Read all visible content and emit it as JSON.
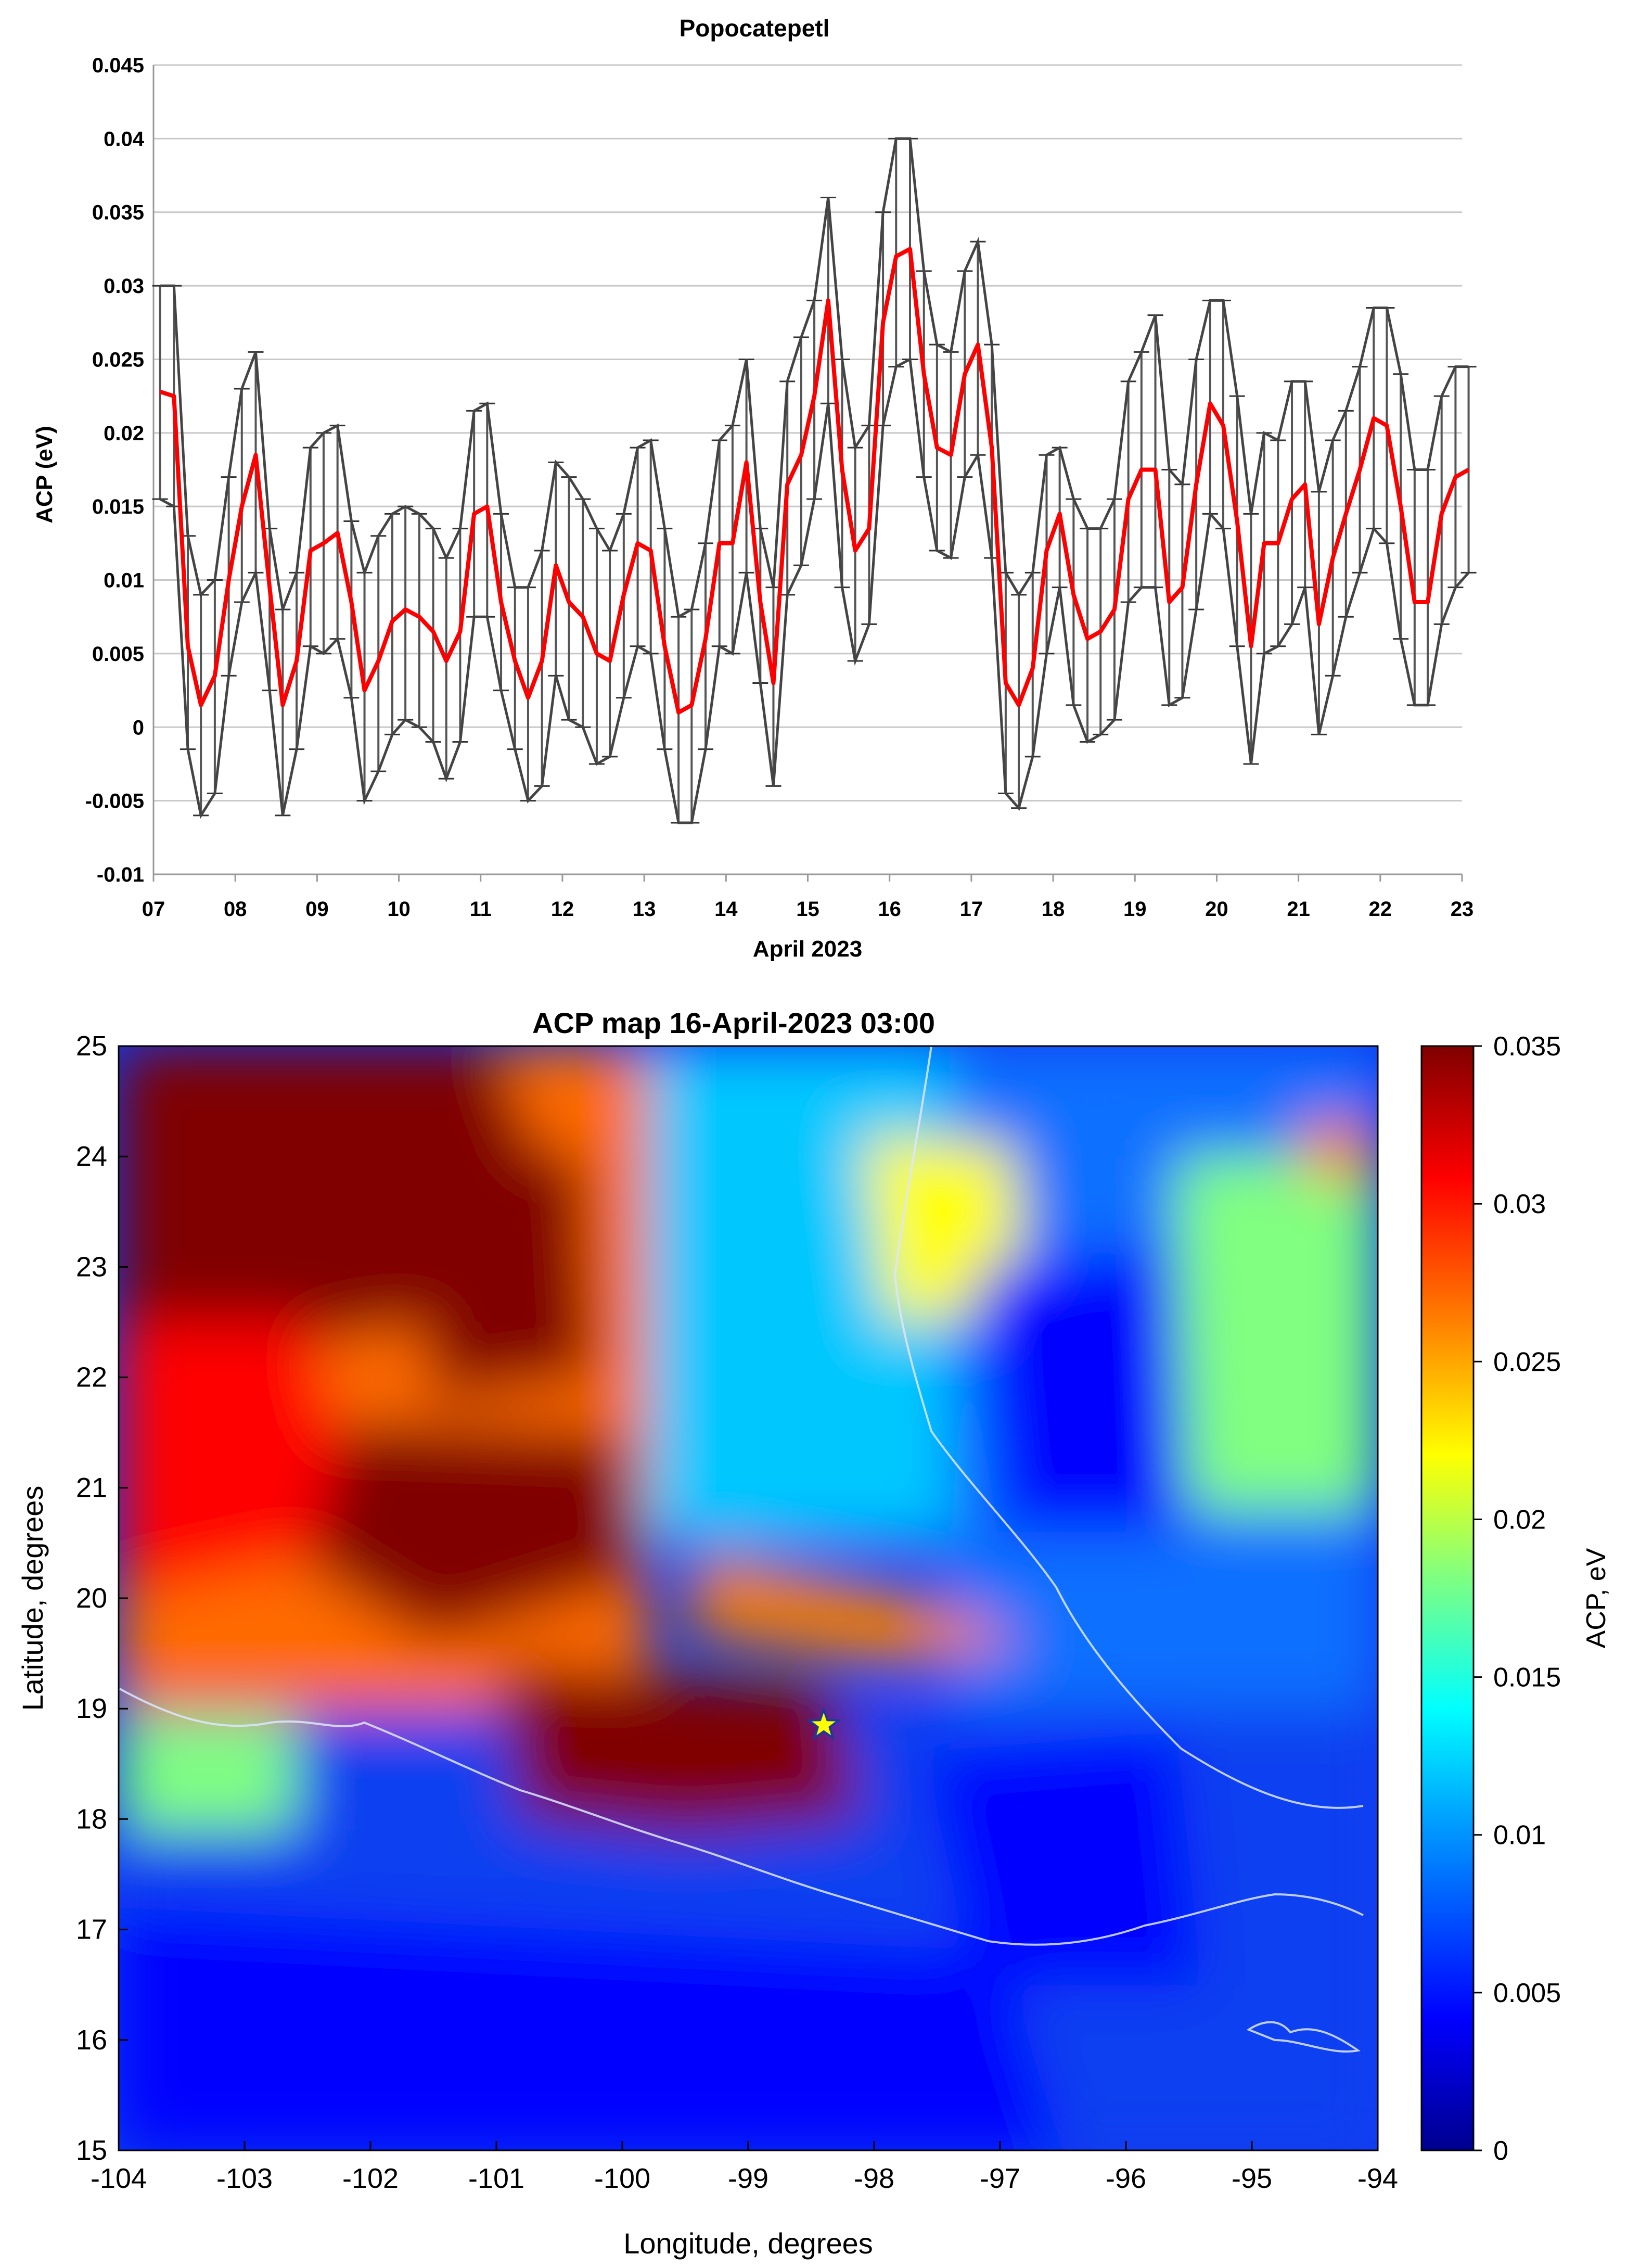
{
  "chart_data": [
    {
      "type": "line",
      "title": "Popocatepetl",
      "xlabel": "April 2023",
      "ylabel": "ACP (eV)",
      "ylim": [
        -0.01,
        0.045
      ],
      "xlim": [
        7,
        23
      ],
      "yticks": [
        "0.045",
        "0.04",
        "0.035",
        "0.03",
        "0.025",
        "0.02",
        "0.015",
        "0.01",
        "0.005",
        "0",
        "-0.005",
        "-0.01"
      ],
      "xticks": [
        "07",
        "08",
        "09",
        "10",
        "11",
        "12",
        "13",
        "14",
        "15",
        "16",
        "17",
        "18",
        "19",
        "20",
        "21",
        "22",
        "23"
      ],
      "grid": true,
      "series": [
        {
          "name": "ACP mean",
          "color": "#ff0000",
          "points": [
            [
              7.08,
              0.0228
            ],
            [
              7.25,
              0.0225
            ],
            [
              7.42,
              0.0055
            ],
            [
              7.58,
              0.0015
            ],
            [
              7.75,
              0.0035
            ],
            [
              7.92,
              0.01
            ],
            [
              8.08,
              0.015
            ],
            [
              8.25,
              0.0185
            ],
            [
              8.42,
              0.0095
            ],
            [
              8.58,
              0.0015
            ],
            [
              8.75,
              0.0045
            ],
            [
              8.92,
              0.012
            ],
            [
              9.08,
              0.0125
            ],
            [
              9.25,
              0.0132
            ],
            [
              9.42,
              0.0085
            ],
            [
              9.58,
              0.0025
            ],
            [
              9.75,
              0.0045
            ],
            [
              9.92,
              0.0072
            ],
            [
              10.08,
              0.008
            ],
            [
              10.25,
              0.0075
            ],
            [
              10.42,
              0.0065
            ],
            [
              10.58,
              0.0045
            ],
            [
              10.75,
              0.0065
            ],
            [
              10.92,
              0.0145
            ],
            [
              11.08,
              0.015
            ],
            [
              11.25,
              0.0085
            ],
            [
              11.42,
              0.0045
            ],
            [
              11.58,
              0.002
            ],
            [
              11.75,
              0.0045
            ],
            [
              11.92,
              0.011
            ],
            [
              12.08,
              0.0085
            ],
            [
              12.25,
              0.0075
            ],
            [
              12.42,
              0.005
            ],
            [
              12.58,
              0.0045
            ],
            [
              12.75,
              0.009
            ],
            [
              12.92,
              0.0125
            ],
            [
              13.08,
              0.012
            ],
            [
              13.25,
              0.0055
            ],
            [
              13.42,
              0.001
            ],
            [
              13.58,
              0.0015
            ],
            [
              13.75,
              0.006
            ],
            [
              13.92,
              0.0125
            ],
            [
              14.08,
              0.0125
            ],
            [
              14.25,
              0.018
            ],
            [
              14.42,
              0.0085
            ],
            [
              14.58,
              0.003
            ],
            [
              14.75,
              0.0165
            ],
            [
              14.92,
              0.0185
            ],
            [
              15.08,
              0.0225
            ],
            [
              15.25,
              0.029
            ],
            [
              15.42,
              0.0175
            ],
            [
              15.58,
              0.012
            ],
            [
              15.75,
              0.0135
            ],
            [
              15.92,
              0.0275
            ],
            [
              16.08,
              0.032
            ],
            [
              16.25,
              0.0325
            ],
            [
              16.42,
              0.024
            ],
            [
              16.58,
              0.019
            ],
            [
              16.75,
              0.0185
            ],
            [
              16.92,
              0.024
            ],
            [
              17.08,
              0.026
            ],
            [
              17.25,
              0.019
            ],
            [
              17.42,
              0.003
            ],
            [
              17.58,
              0.0015
            ],
            [
              17.75,
              0.004
            ],
            [
              17.92,
              0.012
            ],
            [
              18.08,
              0.0145
            ],
            [
              18.25,
              0.009
            ],
            [
              18.42,
              0.006
            ],
            [
              18.58,
              0.0065
            ],
            [
              18.75,
              0.008
            ],
            [
              18.92,
              0.0155
            ],
            [
              19.08,
              0.0175
            ],
            [
              19.25,
              0.0175
            ],
            [
              19.42,
              0.0085
            ],
            [
              19.58,
              0.0095
            ],
            [
              19.75,
              0.0165
            ],
            [
              19.92,
              0.022
            ],
            [
              20.08,
              0.0205
            ],
            [
              20.25,
              0.014
            ],
            [
              20.42,
              0.0055
            ],
            [
              20.58,
              0.0125
            ],
            [
              20.75,
              0.0125
            ],
            [
              20.92,
              0.0155
            ],
            [
              21.08,
              0.0165
            ],
            [
              21.25,
              0.007
            ],
            [
              21.42,
              0.0115
            ],
            [
              21.58,
              0.0145
            ],
            [
              21.75,
              0.0175
            ],
            [
              21.92,
              0.021
            ],
            [
              22.08,
              0.0205
            ],
            [
              22.25,
              0.015
            ],
            [
              22.42,
              0.0085
            ],
            [
              22.58,
              0.0085
            ],
            [
              22.75,
              0.0145
            ],
            [
              22.92,
              0.017
            ],
            [
              23.08,
              0.0175
            ]
          ]
        }
      ],
      "error_band": {
        "name": "error bars",
        "color": "#555555",
        "upper": [
          0.03,
          0.03,
          0.013,
          0.009,
          0.01,
          0.017,
          0.023,
          0.0255,
          0.0135,
          0.008,
          0.0105,
          0.019,
          0.02,
          0.0205,
          0.014,
          0.0105,
          0.013,
          0.0145,
          0.015,
          0.0145,
          0.0135,
          0.0115,
          0.0135,
          0.0215,
          0.022,
          0.0145,
          0.0095,
          0.0095,
          0.012,
          0.018,
          0.017,
          0.0155,
          0.0135,
          0.012,
          0.0145,
          0.019,
          0.0195,
          0.0135,
          0.0075,
          0.008,
          0.0125,
          0.0195,
          0.0205,
          0.025,
          0.0135,
          0.0095,
          0.0235,
          0.0265,
          0.029,
          0.036,
          0.025,
          0.019,
          0.0205,
          0.035,
          0.04,
          0.04,
          0.031,
          0.026,
          0.0255,
          0.031,
          0.033,
          0.026,
          0.0105,
          0.009,
          0.0105,
          0.0185,
          0.019,
          0.0155,
          0.0135,
          0.0135,
          0.0155,
          0.0235,
          0.0255,
          0.028,
          0.0175,
          0.0165,
          0.025,
          0.029,
          0.029,
          0.0225,
          0.0145,
          0.02,
          0.0195,
          0.0235,
          0.0235,
          0.016,
          0.0195,
          0.0215,
          0.0245,
          0.0285,
          0.0285,
          0.024,
          0.0175,
          0.0175,
          0.0225,
          0.0245,
          0.0245
        ]
      },
      "lower_band": [
        0.0155,
        0.015,
        -0.0015,
        -0.006,
        -0.0045,
        0.0035,
        0.0085,
        0.0105,
        0.0025,
        -0.006,
        -0.0015,
        0.0055,
        0.005,
        0.006,
        0.002,
        -0.005,
        -0.003,
        -0.0005,
        0.0005,
        0.0,
        -0.001,
        -0.0035,
        -0.001,
        0.0075,
        0.0075,
        0.0025,
        -0.0015,
        -0.005,
        -0.004,
        0.0035,
        0.0005,
        0.0,
        -0.0025,
        -0.002,
        0.002,
        0.0055,
        0.005,
        -0.0015,
        -0.0065,
        -0.0065,
        -0.0015,
        0.0055,
        0.005,
        0.0105,
        0.003,
        -0.004,
        0.009,
        0.011,
        0.0155,
        0.022,
        0.0095,
        0.0045,
        0.007,
        0.0205,
        0.0245,
        0.025,
        0.017,
        0.012,
        0.0115,
        0.017,
        0.0185,
        0.0115,
        -0.0045,
        -0.0055,
        -0.002,
        0.005,
        0.0095,
        0.0015,
        -0.001,
        -0.0005,
        0.0005,
        0.0085,
        0.0095,
        0.0095,
        0.0015,
        0.002,
        0.008,
        0.0145,
        0.0135,
        0.0055,
        -0.0025,
        0.005,
        0.0055,
        0.007,
        0.0095,
        -0.0005,
        0.0035,
        0.0075,
        0.0105,
        0.0135,
        0.0125,
        0.006,
        0.0015,
        0.0015,
        0.007,
        0.0095,
        0.0105
      ]
    },
    {
      "type": "heatmap",
      "title": "ACP map 16-April-2023 03:00",
      "xlabel": "Longitude, degrees",
      "ylabel": "Latitude, degrees",
      "xlim": [
        -104,
        -94
      ],
      "ylim": [
        15,
        25
      ],
      "xticks": [
        "-104",
        "-103",
        "-102",
        "-101",
        "-100",
        "-99",
        "-98",
        "-97",
        "-96",
        "-95",
        "-94"
      ],
      "yticks": [
        "25",
        "24",
        "23",
        "22",
        "21",
        "20",
        "19",
        "18",
        "17",
        "16",
        "15"
      ],
      "colorbar": {
        "label": "ACP, eV",
        "range": [
          0,
          0.035
        ],
        "ticks": [
          "0.035",
          "0.03",
          "0.025",
          "0.02",
          "0.015",
          "0.01",
          "0.005",
          "0"
        ]
      },
      "colormap": [
        "#00008f",
        "#0000ff",
        "#00a0ff",
        "#00ffff",
        "#80ff80",
        "#ffff00",
        "#ff8000",
        "#ff0000",
        "#800000"
      ],
      "marker": {
        "name": "Popocatepetl",
        "symbol": "star",
        "lon": -98.4,
        "lat": 18.85,
        "color": "#ffff00"
      },
      "blobs": [
        {
          "region": "northwest-high",
          "lon": -102.6,
          "lat": 23.6,
          "value": 0.033
        },
        {
          "region": "central-high",
          "lon": -101.0,
          "lat": 22.8,
          "value": 0.034
        },
        {
          "region": "west-high",
          "lon": -103.2,
          "lat": 21.5,
          "value": 0.029
        },
        {
          "region": "center-west-high",
          "lon": -100.9,
          "lat": 20.8,
          "value": 0.033
        },
        {
          "region": "volcano-core",
          "lon": -99.5,
          "lat": 18.6,
          "value": 0.035
        },
        {
          "region": "east-spur",
          "lon": -97.4,
          "lat": 19.8,
          "value": 0.027
        },
        {
          "region": "north-green",
          "lon": -97.5,
          "lat": 23.3,
          "value": 0.02
        },
        {
          "region": "east-green",
          "lon": -94.8,
          "lat": 22.3,
          "value": 0.018
        },
        {
          "region": "northeast-spot",
          "lon": -94.3,
          "lat": 24.0,
          "value": 0.026
        },
        {
          "region": "southwest-green",
          "lon": -103.3,
          "lat": 18.5,
          "value": 0.018
        },
        {
          "region": "south-low",
          "lon": -101.0,
          "lat": 16.5,
          "value": 0.005
        },
        {
          "region": "east-low",
          "lon": -96.4,
          "lat": 21.8,
          "value": 0.004
        },
        {
          "region": "southeast-low",
          "lon": -96.2,
          "lat": 17.3,
          "value": 0.005
        }
      ]
    }
  ]
}
